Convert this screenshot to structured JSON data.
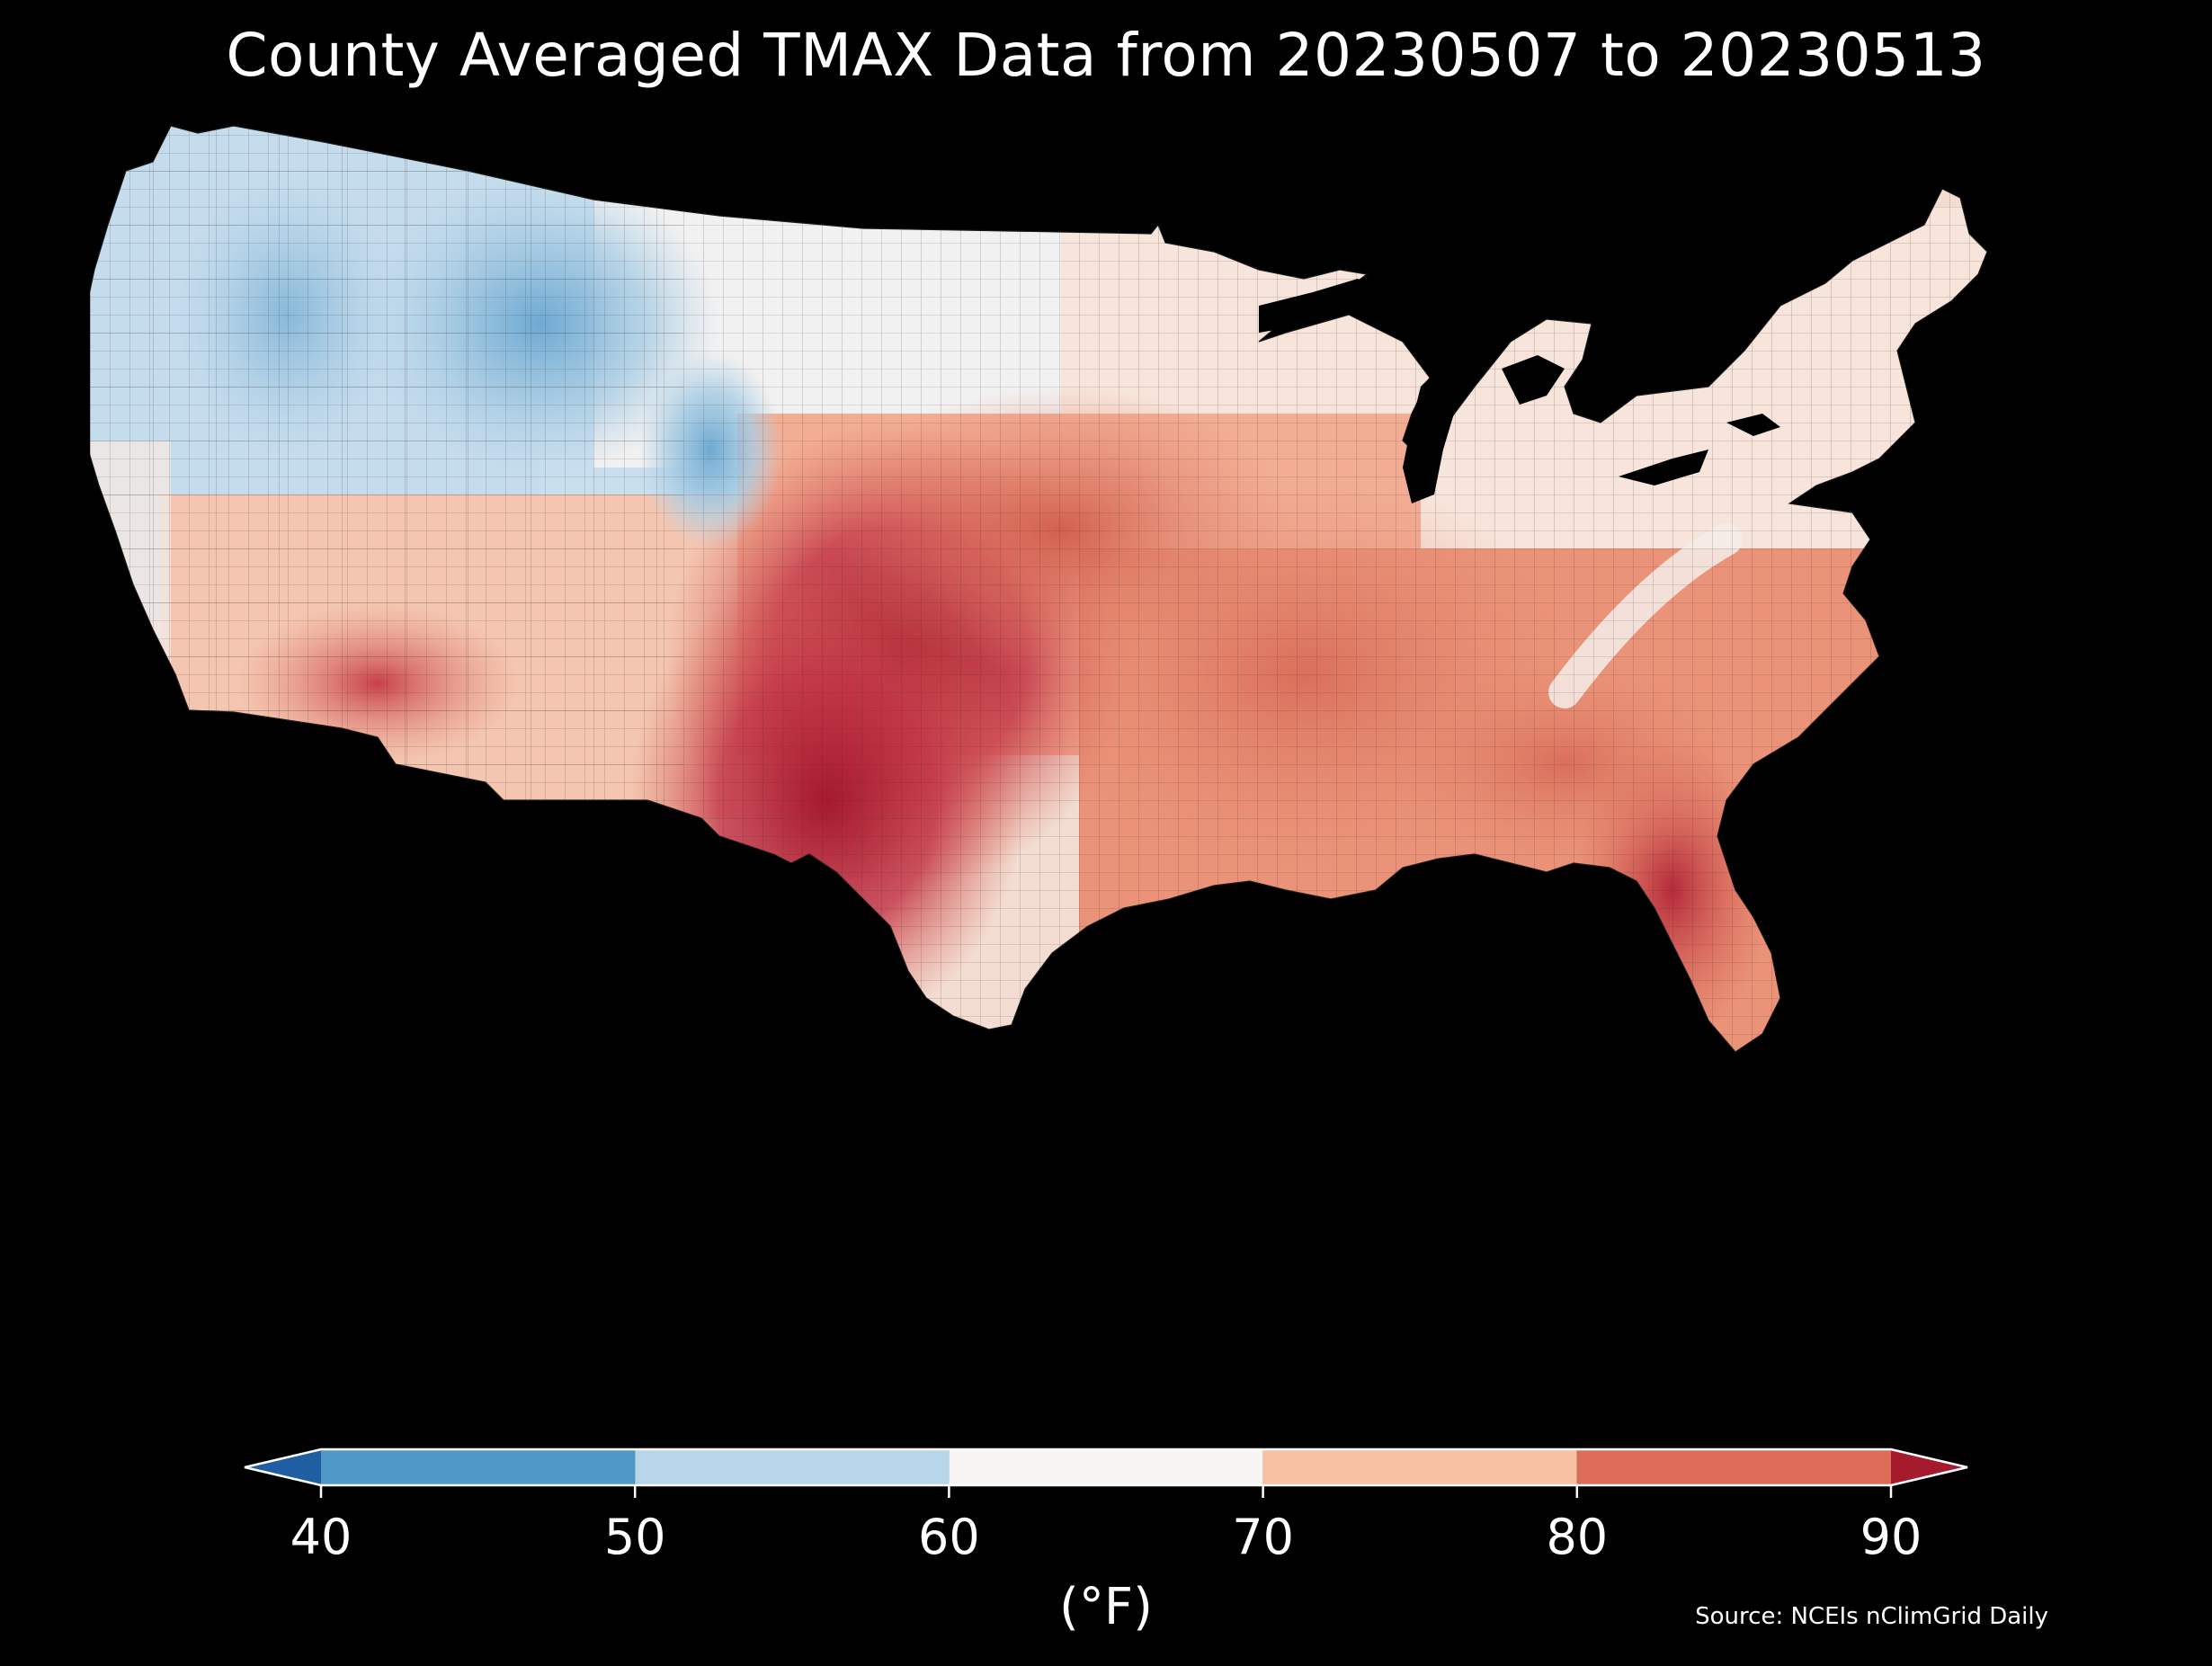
{
  "title": "County Averaged TMAX Data from 20230507 to 20230513",
  "colorbar": {
    "label": "(°F)",
    "ticks": [
      "40",
      "50",
      "60",
      "70",
      "80",
      "90"
    ],
    "bins": [
      {
        "from": 40,
        "to": 50,
        "color": "#4e99c7"
      },
      {
        "from": 50,
        "to": 60,
        "color": "#b7d6e9"
      },
      {
        "from": 60,
        "to": 70,
        "color": "#f6f5f4"
      },
      {
        "from": 70,
        "to": 80,
        "color": "#f8c1a3"
      },
      {
        "from": 80,
        "to": 90,
        "color": "#dd6c58"
      }
    ],
    "under_color": "#1f5ea1",
    "over_color": "#a51a2d",
    "extend": "both"
  },
  "source": "Source: NCEIs nClimGrid Daily",
  "map": {
    "region": "Contiguous United States, county level",
    "variable": "TMAX",
    "units": "°F",
    "background": "#000000",
    "regional_values_approx": [
      {
        "region": "Pacific Northwest / Idaho / Montana",
        "tmax_f": 55
      },
      {
        "region": "Wyoming / Colorado Rockies",
        "tmax_f": 50
      },
      {
        "region": "Northern Plains / Upper Midwest",
        "tmax_f": 65
      },
      {
        "region": "Great Lakes / Northeast",
        "tmax_f": 71
      },
      {
        "region": "Central California coast",
        "tmax_f": 68
      },
      {
        "region": "Southern California / Nevada",
        "tmax_f": 74
      },
      {
        "region": "Southern Arizona",
        "tmax_f": 84
      },
      {
        "region": "Kansas / Oklahoma",
        "tmax_f": 82
      },
      {
        "region": "South Texas",
        "tmax_f": 90
      },
      {
        "region": "Southeast / Gulf Coast",
        "tmax_f": 80
      },
      {
        "region": "South Florida",
        "tmax_f": 86
      },
      {
        "region": "Appalachian ridge",
        "tmax_f": 68
      }
    ]
  }
}
